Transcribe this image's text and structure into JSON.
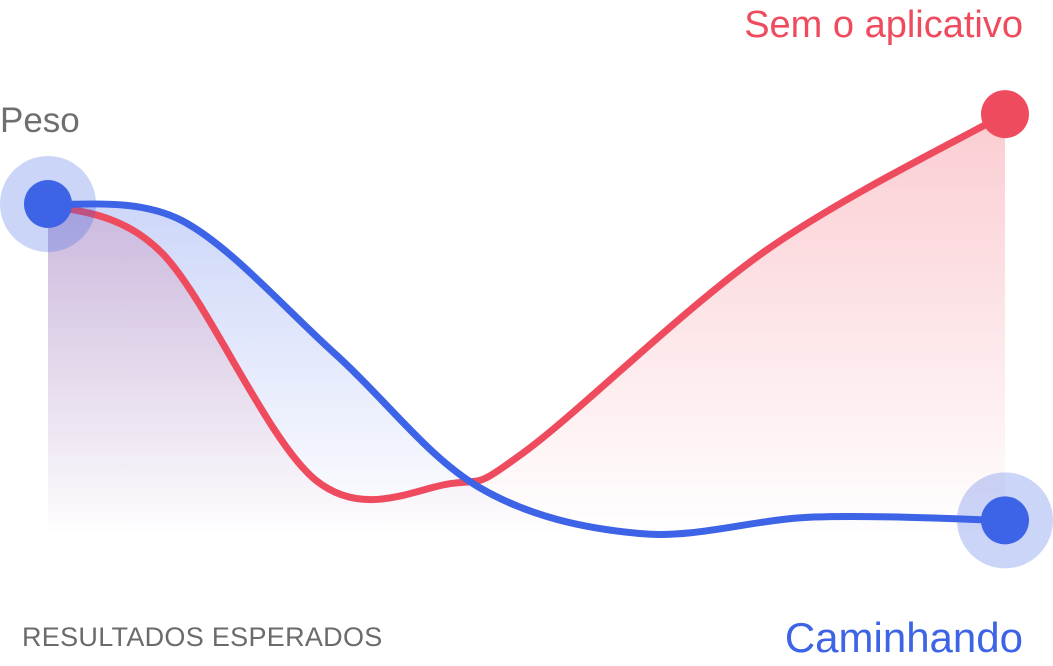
{
  "y_label": "Peso",
  "caption": "RESULTADOS ESPERADOS",
  "chart_data": {
    "type": "line",
    "title": "",
    "xlabel": "",
    "ylabel": "Peso",
    "grid": true,
    "legend": "inline",
    "ylim": [
      0,
      1
    ],
    "series": [
      {
        "name": "Sem o aplicativo",
        "color": "#ef4b5e",
        "points": [
          {
            "x": 0,
            "y": 1
          },
          {
            "x": 0.12,
            "y": 0.85
          },
          {
            "x": 0.28,
            "y": 0.17
          },
          {
            "x": 0.42,
            "y": 0.16
          },
          {
            "x": 0.5,
            "y": 0.26
          },
          {
            "x": 0.75,
            "y": 0.86
          },
          {
            "x": 1,
            "y": 1.27
          }
        ]
      },
      {
        "name": "Caminhando",
        "color": "#3d63e6",
        "points": [
          {
            "x": 0,
            "y": 1
          },
          {
            "x": 0.14,
            "y": 0.95
          },
          {
            "x": 0.3,
            "y": 0.55
          },
          {
            "x": 0.45,
            "y": 0.15
          },
          {
            "x": 0.62,
            "y": 0.01
          },
          {
            "x": 0.8,
            "y": 0.06
          },
          {
            "x": 1,
            "y": 0.05
          }
        ]
      }
    ]
  }
}
